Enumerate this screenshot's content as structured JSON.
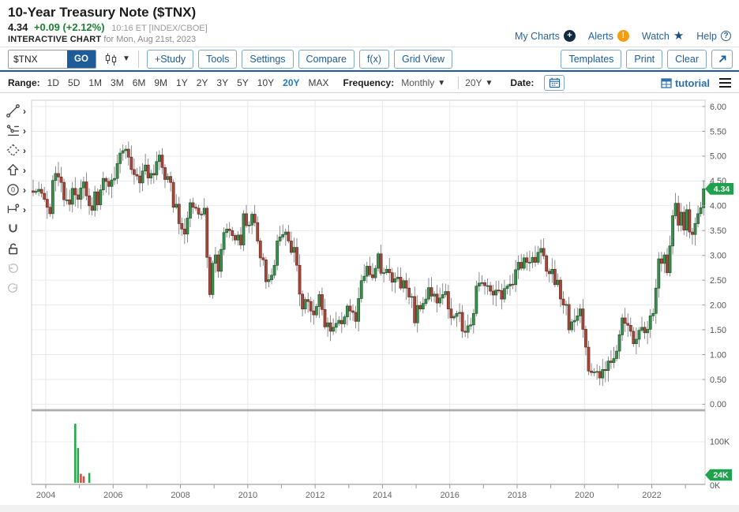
{
  "header": {
    "title": "10-Year Treasury Note ($TNX)",
    "quote": {
      "last": "4.34",
      "change": "+0.09 (+2.12%)",
      "meta": "10:16 ET [INDEX/CBOE]"
    },
    "subtitle_bold": "INTERACTIVE CHART",
    "subtitle_rest": " for Mon, Aug 21st, 2023",
    "links": [
      {
        "label": "My Charts",
        "icon": "plus-circle-icon"
      },
      {
        "label": "Alerts",
        "icon": "alert-circle-icon"
      },
      {
        "label": "Watch",
        "icon": "star-icon"
      },
      {
        "label": "Help",
        "icon": "question-circle-icon"
      }
    ]
  },
  "toolbar": {
    "symbol_value": "$TNX",
    "go_label": "GO",
    "buttons": [
      "+Study",
      "Tools",
      "Settings",
      "Compare",
      "f(x)",
      "Grid View"
    ],
    "right_buttons": [
      "Templates",
      "Print",
      "Clear"
    ]
  },
  "rangebar": {
    "range_label": "Range:",
    "ranges": [
      "1D",
      "5D",
      "1M",
      "3M",
      "6M",
      "9M",
      "1Y",
      "2Y",
      "3Y",
      "5Y",
      "10Y",
      "20Y",
      "MAX"
    ],
    "selected_range": "20Y",
    "frequency_label": "Frequency:",
    "frequency_value": "Monthly",
    "period_value": "20Y",
    "date_label": "Date:",
    "tutorial_label": "tutorial"
  },
  "sidebar_tools": [
    {
      "name": "trendline-icon",
      "chevron": true
    },
    {
      "name": "fibonacci-icon",
      "chevron": true
    },
    {
      "name": "shapes-icon",
      "chevron": true
    },
    {
      "name": "arrow-annotation-icon",
      "chevron": true
    },
    {
      "name": "circle-annotation-icon",
      "chevron": true
    },
    {
      "name": "measure-icon",
      "chevron": true
    },
    {
      "name": "magnet-icon",
      "chevron": false
    },
    {
      "name": "unlock-icon",
      "chevron": false
    },
    {
      "name": "undo-icon",
      "chevron": false
    },
    {
      "name": "redo-icon",
      "chevron": false
    }
  ],
  "chart_data": {
    "type": "candlestick+volume",
    "symbol": "$TNX",
    "frequency": "Monthly",
    "range": "20Y",
    "start_month": "2003-09",
    "first_open": 4.3,
    "closes": [
      4.27,
      4.29,
      4.33,
      4.25,
      4.13,
      3.97,
      3.84,
      4.51,
      4.65,
      4.58,
      4.47,
      4.12,
      4.12,
      4.03,
      4.35,
      4.22,
      4.13,
      4.36,
      4.48,
      4.2,
      4.0,
      3.91,
      4.28,
      4.02,
      4.32,
      4.55,
      4.49,
      4.39,
      4.52,
      4.55,
      4.85,
      5.06,
      5.11,
      5.14,
      4.98,
      4.73,
      4.63,
      4.6,
      4.46,
      4.7,
      4.82,
      4.56,
      4.65,
      4.62,
      4.89,
      5.02,
      4.77,
      4.53,
      4.59,
      4.47,
      3.97,
      4.03,
      3.64,
      3.53,
      3.43,
      3.75,
      4.06,
      3.97,
      3.95,
      3.83,
      3.83,
      3.95,
      2.96,
      2.21,
      2.84,
      3.01,
      2.68,
      3.12,
      3.46,
      3.53,
      3.5,
      3.4,
      3.31,
      3.41,
      3.21,
      3.84,
      3.6,
      3.61,
      3.83,
      3.66,
      3.29,
      2.95,
      2.91,
      2.47,
      2.51,
      2.6,
      2.8,
      3.29,
      3.37,
      3.42,
      3.47,
      3.29,
      3.06,
      3.16,
      2.8,
      2.22,
      1.92,
      2.11,
      2.07,
      1.88,
      1.8,
      1.97,
      2.21,
      1.91,
      1.56,
      1.64,
      1.47,
      1.55,
      1.63,
      1.69,
      1.62,
      1.76,
      1.98,
      1.88,
      1.85,
      1.67,
      2.13,
      2.49,
      2.58,
      2.78,
      2.61,
      2.55,
      2.74,
      3.03,
      2.64,
      2.65,
      2.72,
      2.65,
      2.46,
      2.53,
      2.56,
      2.34,
      2.49,
      2.34,
      2.16,
      2.17,
      1.64,
      1.99,
      1.92,
      2.03,
      2.12,
      2.35,
      2.18,
      2.22,
      2.04,
      2.14,
      2.21,
      2.27,
      1.92,
      1.74,
      1.77,
      1.83,
      1.85,
      1.47,
      1.45,
      1.58,
      1.6,
      1.83,
      2.38,
      2.44,
      2.45,
      2.39,
      2.39,
      2.28,
      2.2,
      2.3,
      2.29,
      2.12,
      2.33,
      2.38,
      2.42,
      2.41,
      2.71,
      2.86,
      2.74,
      2.95,
      2.86,
      2.86,
      2.96,
      2.86,
      3.06,
      3.14,
      2.99,
      2.68,
      2.63,
      2.72,
      2.41,
      2.5,
      2.12,
      2.0,
      2.01,
      1.5,
      1.66,
      1.69,
      1.78,
      1.92,
      1.51,
      1.15,
      0.67,
      0.64,
      0.65,
      0.66,
      0.53,
      0.7,
      0.68,
      0.87,
      0.84,
      0.92,
      1.07,
      1.4,
      1.74,
      1.63,
      1.59,
      1.47,
      1.22,
      1.31,
      1.49,
      1.55,
      1.44,
      1.51,
      1.78,
      1.83,
      2.34,
      2.93,
      2.84,
      3.01,
      2.65,
      3.19,
      3.8,
      4.05,
      3.61,
      3.87,
      3.51,
      3.92,
      3.47,
      3.42,
      3.64,
      3.84,
      3.96,
      4.34
    ],
    "volume_bars_thousands": [
      {
        "i": 15,
        "v": 144,
        "dir": "up"
      },
      {
        "i": 16,
        "v": 85,
        "dir": "up"
      },
      {
        "i": 17,
        "v": 22,
        "dir": "down"
      },
      {
        "i": 18,
        "v": 16,
        "dir": "down"
      },
      {
        "i": 20,
        "v": 24,
        "dir": "up"
      }
    ],
    "y_axis": {
      "min": 0,
      "max": 6,
      "step": 0.5,
      "labels": [
        "6.00",
        "5.50",
        "5.00",
        "4.50",
        "4.00",
        "3.50",
        "3.00",
        "2.50",
        "2.00",
        "1.50",
        "1.00",
        "0.50",
        "0.00"
      ]
    },
    "volume_axis_labels": [
      "100K",
      "0K"
    ],
    "x_axis": {
      "year_labels": [
        "2004",
        "2006",
        "2008",
        "2010",
        "2012",
        "2014",
        "2016",
        "2018",
        "2020",
        "2022"
      ]
    },
    "last_price_badge": "4.34",
    "volume_badge": "24K",
    "grid": true,
    "colors": {
      "up_fill": "#3e8e4f",
      "up_border": "#1b5a2a",
      "down_fill": "#a34a3f",
      "down_border": "#702820",
      "wick": "#6f6f6f",
      "grid": "#e9e9e9",
      "frame": "#cfcfcf",
      "axis_text": "#555555",
      "badge": "#1fa14d",
      "vol_up": "#2aa84e",
      "vol_down": "#e0483f",
      "divider": "#aeaeae"
    }
  }
}
